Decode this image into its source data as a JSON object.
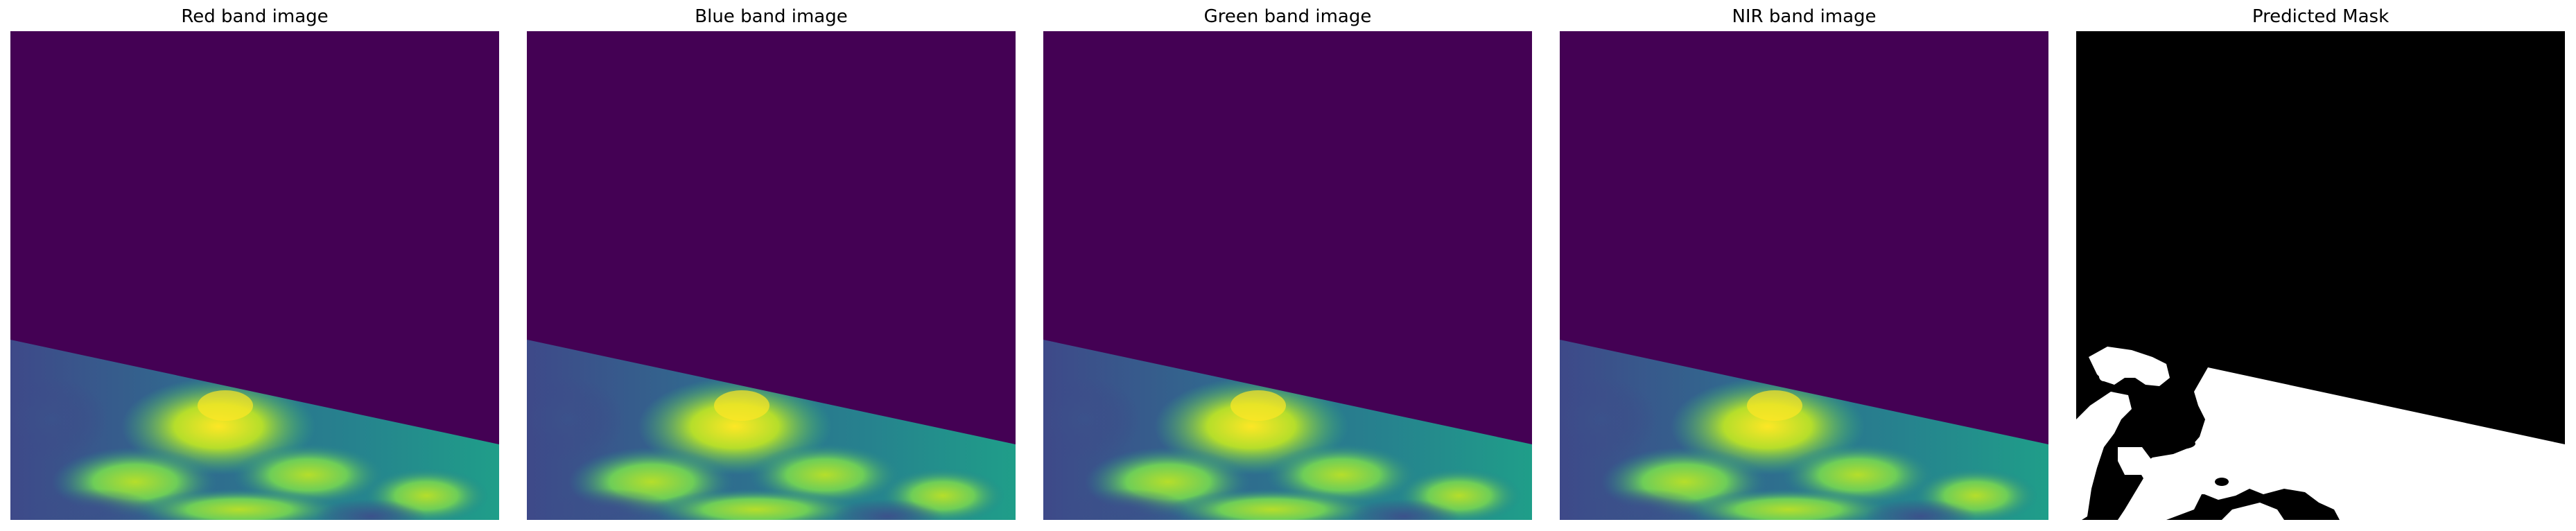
{
  "figure": {
    "panels": [
      {
        "title": "Red band image"
      },
      {
        "title": "Blue band image"
      },
      {
        "title": "Green band image"
      },
      {
        "title": "NIR band image"
      },
      {
        "title": "Predicted Mask"
      }
    ]
  },
  "colors": {
    "nodata": "#440154",
    "colormap": [
      "#482878",
      "#3e4989",
      "#31688e",
      "#26828e",
      "#1f9e89",
      "#35b779",
      "#6ece58",
      "#b5de2b",
      "#fde725"
    ],
    "mask_fg": "#ffffff",
    "mask_bg": "#000000"
  }
}
